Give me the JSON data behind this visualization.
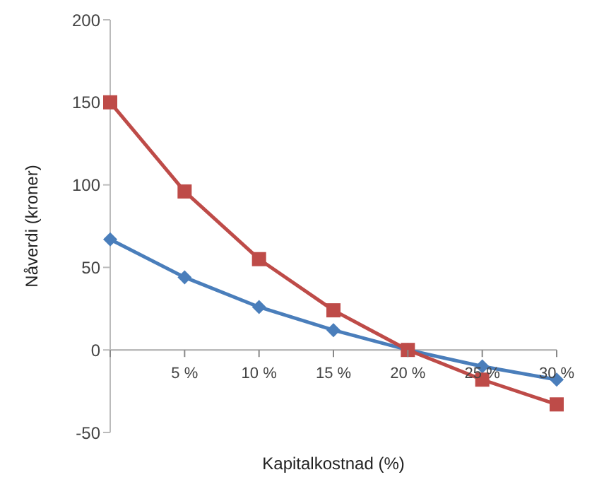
{
  "chart_data": {
    "type": "line",
    "xlabel": "Kapitalkostnad (%)",
    "ylabel": "Nåverdi (kroner)",
    "categories": [
      null,
      "5 %",
      "10 %",
      "15 %",
      "20 %",
      "25 %",
      "30 %"
    ],
    "series": [
      {
        "color": "#4a7ebb",
        "marker": "diamond",
        "values": [
          67,
          44,
          26,
          12,
          0,
          -10,
          -18
        ]
      },
      {
        "color": "#be4b48",
        "marker": "square",
        "values": [
          150,
          96,
          55,
          24,
          0,
          -18,
          -33
        ]
      }
    ],
    "ylim": [
      -50,
      200
    ],
    "yticks": [
      -50,
      0,
      50,
      100,
      150,
      200
    ],
    "grid": false,
    "legend": false
  }
}
